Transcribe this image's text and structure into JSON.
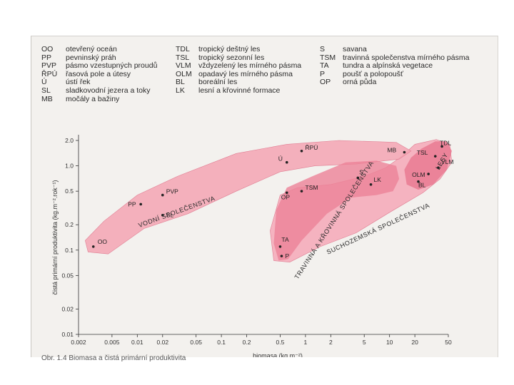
{
  "legend": {
    "col1": [
      {
        "abbr": "OO",
        "desc": "otevřený oceán"
      },
      {
        "abbr": "PP",
        "desc": "pevninský práh"
      },
      {
        "abbr": "PVP",
        "desc": "pásmo vzestupných proudů"
      },
      {
        "abbr": "ŘPÚ",
        "desc": "řasová pole a útesy"
      },
      {
        "abbr": "Ú",
        "desc": "ústí řek"
      },
      {
        "abbr": "SL",
        "desc": "sladkovodní jezera a toky"
      },
      {
        "abbr": "MB",
        "desc": "močály a bažiny"
      }
    ],
    "col2": [
      {
        "abbr": "TDL",
        "desc": "tropický deštný les"
      },
      {
        "abbr": "TSL",
        "desc": "tropický sezonní les"
      },
      {
        "abbr": "VLM",
        "desc": "vždyzelený les mírného pásma"
      },
      {
        "abbr": "OLM",
        "desc": "opadavý les mírného pásma"
      },
      {
        "abbr": "BL",
        "desc": "boreální les"
      },
      {
        "abbr": "LK",
        "desc": "lesní a křovinné formace"
      }
    ],
    "col3": [
      {
        "abbr": "S",
        "desc": "savana"
      },
      {
        "abbr": "TSM",
        "desc": "travinná společenstva mírného pásma"
      },
      {
        "abbr": "TA",
        "desc": "tundra a alpínská vegetace"
      },
      {
        "abbr": "P",
        "desc": "poušť a polopoušť"
      },
      {
        "abbr": "OP",
        "desc": "orná půda"
      }
    ]
  },
  "chart_data": {
    "type": "scatter",
    "xscale": "log",
    "yscale": "log",
    "xlabel": "biomasa (kg.m⁻²)",
    "ylabel": "čistá primární produktivita (kg.m⁻².rok⁻¹)",
    "xlim": [
      0.002,
      50
    ],
    "ylim": [
      0.01,
      2.0
    ],
    "xticks": [
      {
        "v": 0.002,
        "label": "0.002"
      },
      {
        "v": 0.005,
        "label": "0.005"
      },
      {
        "v": 0.01,
        "label": "0.01"
      },
      {
        "v": 0.02,
        "label": "0.02"
      },
      {
        "v": 0.05,
        "label": "0.05"
      },
      {
        "v": 0.1,
        "label": "0.1"
      },
      {
        "v": 0.2,
        "label": "0.2"
      },
      {
        "v": 0.5,
        "label": "0.5"
      },
      {
        "v": 1,
        "label": "1"
      },
      {
        "v": 2,
        "label": "2"
      },
      {
        "v": 5,
        "label": "5"
      },
      {
        "v": 10,
        "label": "10"
      },
      {
        "v": 20,
        "label": "20"
      },
      {
        "v": 50,
        "label": "50"
      }
    ],
    "yticks": [
      {
        "v": 0.01,
        "label": "0.01"
      },
      {
        "v": 0.02,
        "label": "0.02"
      },
      {
        "v": 0.05,
        "label": "0.05"
      },
      {
        "v": 0.1,
        "label": "0.1"
      },
      {
        "v": 0.2,
        "label": "0.2"
      },
      {
        "v": 0.5,
        "label": "0.5"
      },
      {
        "v": 1,
        "label": "1.0"
      },
      {
        "v": 2,
        "label": "2.0"
      }
    ],
    "groups": [
      {
        "name": "VODNÍ SPOLEČENSTVA",
        "color": "#f2a5b4",
        "labelAt": [
          0.03,
          0.27
        ],
        "labelAngle": -20
      },
      {
        "name": "TRAVINNÁ A KŘOVINNÁ SPOLEČENSTVA",
        "color": "#ee8fa1",
        "labelAt": [
          2.3,
          0.22
        ],
        "labelAngle": -57
      },
      {
        "name": "SUCHOZEMSKÁ SPOLEČENSTVA",
        "color": "#f2a5b4",
        "labelAt": [
          7.5,
          0.17
        ],
        "labelAngle": -25
      },
      {
        "name": "LESY",
        "color": "#ee8fa1",
        "labelAt": [
          44,
          1.1
        ],
        "labelAngle": -60
      }
    ],
    "points": [
      {
        "label": "OO",
        "x": 0.003,
        "y": 0.11,
        "dx": 6,
        "dy": -4
      },
      {
        "label": "PP",
        "x": 0.011,
        "y": 0.35,
        "dx": -18,
        "dy": 3
      },
      {
        "label": "PVP",
        "x": 0.02,
        "y": 0.45,
        "dx": 5,
        "dy": -2
      },
      {
        "label": "SL",
        "x": 0.02,
        "y": 0.26,
        "dx": 5,
        "dy": 3
      },
      {
        "label": "ŘPÚ",
        "x": 0.9,
        "y": 1.5,
        "dx": 5,
        "dy": -2
      },
      {
        "label": "Ú",
        "x": 0.6,
        "y": 1.1,
        "dx": -12,
        "dy": -2
      },
      {
        "label": "MB",
        "x": 15,
        "y": 1.45,
        "dx": -24,
        "dy": 0
      },
      {
        "label": "S",
        "x": 4.2,
        "y": 0.72,
        "dx": 2,
        "dy": -5
      },
      {
        "label": "LK",
        "x": 6,
        "y": 0.6,
        "dx": 4,
        "dy": -4
      },
      {
        "label": "TSM",
        "x": 0.9,
        "y": 0.5,
        "dx": 5,
        "dy": -2
      },
      {
        "label": "OP",
        "x": 0.6,
        "y": 0.48,
        "dx": -8,
        "dy": 9
      },
      {
        "label": "TA",
        "x": 0.5,
        "y": 0.11,
        "dx": 2,
        "dy": -7
      },
      {
        "label": "P",
        "x": 0.52,
        "y": 0.085,
        "dx": 5,
        "dy": 3
      },
      {
        "label": "TDL",
        "x": 42,
        "y": 1.7,
        "dx": -3,
        "dy": -2
      },
      {
        "label": "TSL",
        "x": 35,
        "y": 1.3,
        "dx": -26,
        "dy": -2
      },
      {
        "label": "VLM",
        "x": 38,
        "y": 0.95,
        "dx": 4,
        "dy": -5
      },
      {
        "label": "OLM",
        "x": 29,
        "y": 0.8,
        "dx": -23,
        "dy": 4
      },
      {
        "label": "BL",
        "x": 22,
        "y": 0.65,
        "dx": 0,
        "dy": 8
      }
    ]
  },
  "footer": "Obr. 1.4 Biomasa a čistá primární produktivita"
}
